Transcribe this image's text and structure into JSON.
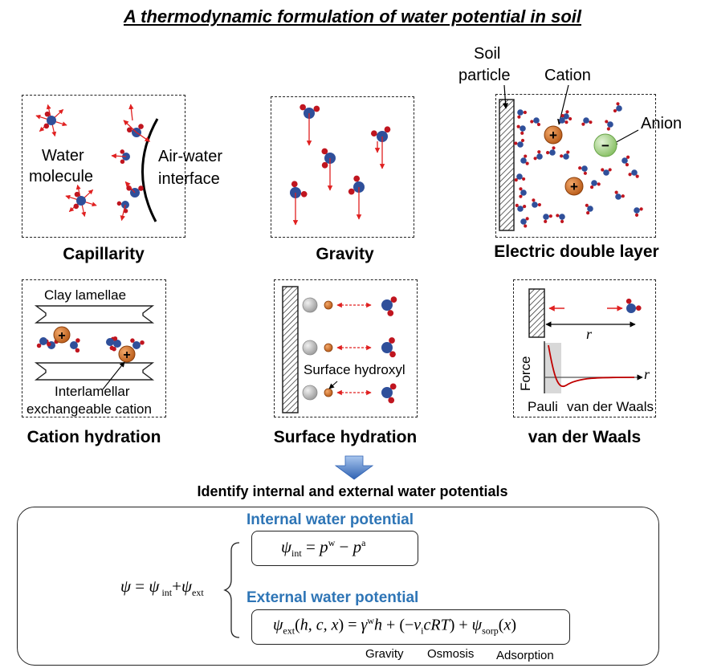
{
  "title": "A thermodynamic formulation of water potential in soil",
  "panels": {
    "capillarity": {
      "caption": "Capillarity",
      "water_molecule_line1": "Water",
      "water_molecule_line2": "molecule",
      "interface_line1": "Air-water",
      "interface_line2": "interface"
    },
    "gravity": {
      "caption": "Gravity"
    },
    "edl": {
      "caption": "Electric double layer",
      "soil_line1": "Soil",
      "soil_line2": "particle",
      "cation": "Cation",
      "anion": "Anion"
    },
    "cation_hydration": {
      "caption": "Cation hydration",
      "clay": "Clay lamellae",
      "interlamellar_line1": "Interlamellar",
      "interlamellar_line2": "exchangeable cation"
    },
    "surface_hydration": {
      "caption": "Surface hydration",
      "hydroxyl": "Surface hydroxyl"
    },
    "vdw": {
      "caption": "van der Waals",
      "r_label": "r",
      "force_label": "Force",
      "r_axis": "r",
      "pauli": "Pauli",
      "vdw_region": "van der Waals"
    }
  },
  "identify": "Identify internal and external water potentials",
  "equations": {
    "internal_heading": "Internal water potential",
    "external_heading": "External water potential",
    "gravity": "Gravity",
    "osmosis": "Osmosis",
    "adsorption": "Adsorption"
  },
  "colors": {
    "oxygen": "#2f4f9a",
    "hydrogen": "#c0151f",
    "arrow": "#e02020",
    "cation": "#d9772b",
    "anion": "#9ccf7e",
    "heading_blue": "#2e75b6",
    "flow_arrow": "#3d73c4"
  }
}
